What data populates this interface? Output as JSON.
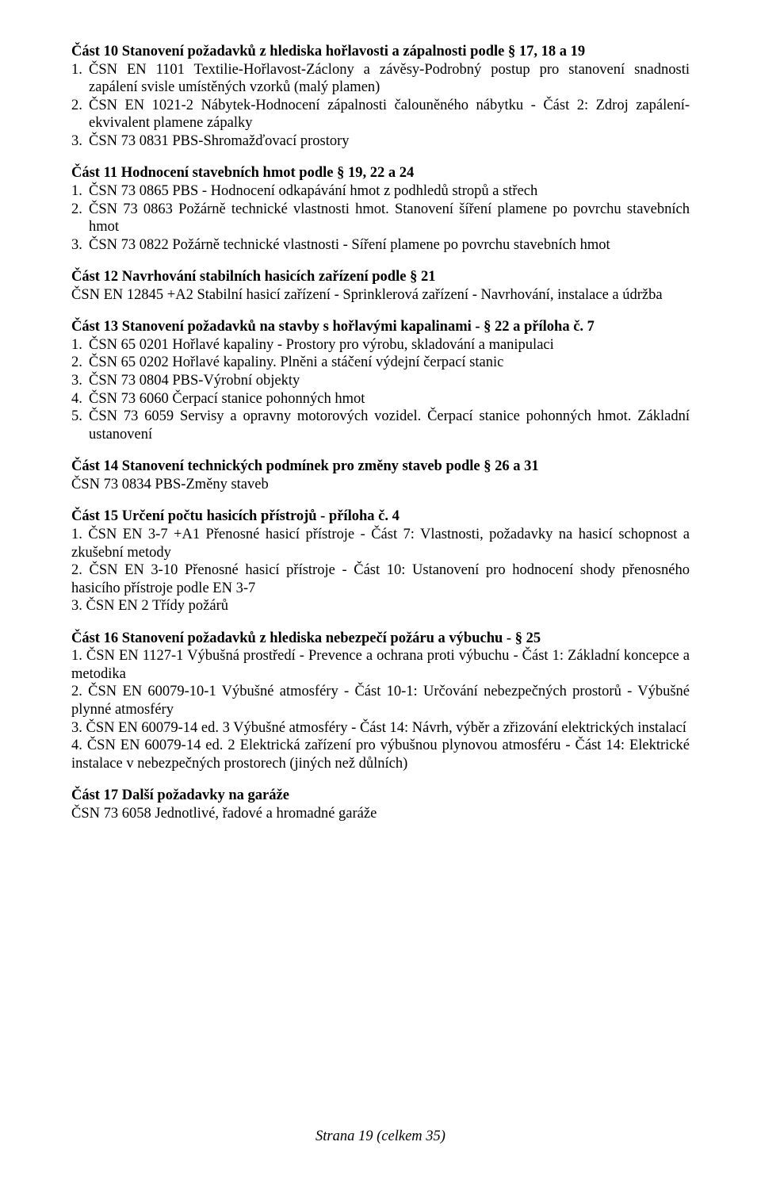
{
  "sections": [
    {
      "title": "Část 10 Stanovení požadavků z hlediska hořlavosti a zápalnosti podle § 17, 18 a 19",
      "items": [
        {
          "num": "1.",
          "text": "ČSN EN 1101 Textilie-Hořlavost-Záclony a závěsy-Podrobný postup pro stanovení snadnosti zapálení svisle umístěných vzorků (malý plamen)"
        },
        {
          "num": "2.",
          "text": "ČSN EN 1021-2 Nábytek-Hodnocení zápalnosti čalouněného nábytku - Část 2: Zdroj zapálení-ekvivalent plamene zápalky"
        },
        {
          "num": "3.",
          "text": "ČSN 73 0831 PBS-Shromažďovací prostory"
        }
      ]
    },
    {
      "title": "Část 11 Hodnocení stavebních hmot podle § 19, 22 a 24",
      "items": [
        {
          "num": "1.",
          "text": "ČSN 73 0865 PBS - Hodnocení odkapávání hmot z podhledů stropů a střech"
        },
        {
          "num": "2.",
          "text": "ČSN 73 0863 Požárně technické vlastnosti hmot. Stanovení šíření plamene po povrchu stavebních hmot"
        },
        {
          "num": "3.",
          "text": "ČSN 73 0822 Požárně technické vlastnosti - Síření plamene po povrchu stavebních hmot"
        }
      ]
    },
    {
      "title": "Část 12 Navrhování stabilních hasicích zařízení podle § 21",
      "body": "ČSN EN 12845 +A2 Stabilní hasicí zařízení - Sprinklerová zařízení - Navrhování, instalace a údržba",
      "body_indent_second": true
    },
    {
      "title": "Část 13 Stanovení požadavků na stavby s hořlavými kapalinami - § 22 a příloha č. 7",
      "items": [
        {
          "num": "1.",
          "text": "ČSN 65 0201 Hořlavé kapaliny - Prostory pro výrobu, skladování a manipulaci"
        },
        {
          "num": "2.",
          "text": "ČSN 65 0202 Hořlavé kapaliny. Plněni a stáčení výdejní čerpací stanic"
        },
        {
          "num": "3.",
          "text": "ČSN 73 0804 PBS-Výrobní objekty"
        },
        {
          "num": "4.",
          "text": "ČSN 73 6060 Čerpací stanice pohonných hmot"
        },
        {
          "num": "5.",
          "text": "ČSN 73 6059 Servisy a opravny motorových vozidel. Čerpací stanice pohonných hmot. Základní ustanovení"
        }
      ]
    },
    {
      "title": "Část 14 Stanovení technických podmínek pro změny staveb podle § 26 a 31",
      "body": "ČSN 73 0834 PBS-Změny staveb"
    },
    {
      "title": "Část 15 Určení počtu hasicích přístrojů - příloha č. 4",
      "paras": [
        "1. ČSN EN 3-7 +A1 Přenosné hasicí přístroje - Část 7: Vlastnosti, požadavky na hasicí schopnost a zkušební metody",
        "2. ČSN EN 3-10 Přenosné hasicí přístroje - Část 10: Ustanovení pro hodnocení shody přenosného hasicího přístroje podle EN 3-7",
        "3. ČSN EN 2 Třídy požárů"
      ]
    },
    {
      "title": "Část 16 Stanovení požadavků z hlediska nebezpečí požáru a výbuchu - § 25",
      "paras": [
        "1. ČSN EN 1127-1 Výbušná prostředí - Prevence a ochrana proti výbuchu - Část 1: Základní koncepce a metodika",
        "2. ČSN EN 60079-10-1 Výbušné atmosféry - Část 10-1: Určování nebezpečných prostorů - Výbušné plynné atmosféry",
        "3. ČSN EN 60079-14 ed. 3 Výbušné atmosféry - Část 14: Návrh, výběr a zřizování elektrických instalací",
        "4. ČSN EN 60079-14 ed. 2 Elektrická zařízení pro výbušnou plynovou atmosféru - Část 14: Elektrické instalace v nebezpečných prostorech (jiných než důlních)"
      ]
    },
    {
      "title": "Část 17 Další požadavky na garáže",
      "body": "ČSN 73 6058 Jednotlivé, řadové a hromadné garáže"
    }
  ],
  "footer": "Strana 19 (celkem 35)"
}
